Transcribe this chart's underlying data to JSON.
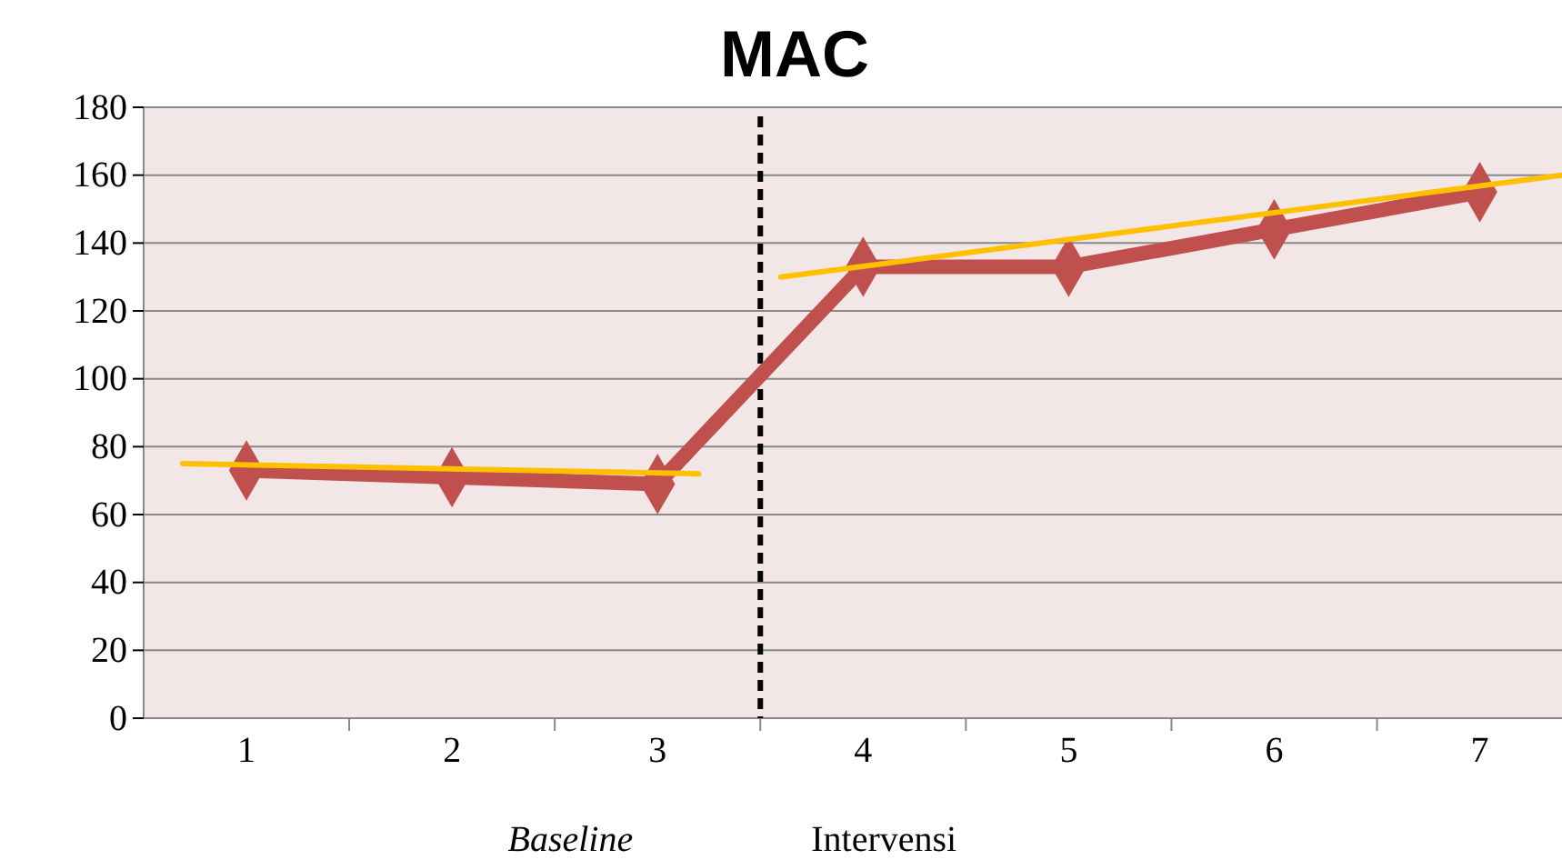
{
  "chart_data": {
    "type": "line",
    "title": "MAC",
    "x": [
      1,
      2,
      3,
      4,
      5,
      6,
      7
    ],
    "series": [
      {
        "color": "#c0504d",
        "values": [
          73,
          71,
          69,
          133,
          133,
          144,
          155
        ],
        "marker": "diamond"
      },
      {
        "type": "line",
        "color": "#ffc000",
        "x": [
          0.69,
          3.2
        ],
        "values": [
          75,
          72
        ],
        "marker": "none"
      },
      {
        "type": "line",
        "color": "#ffc000",
        "x": [
          3.6,
          7.4
        ],
        "values": [
          130,
          160
        ],
        "marker": "none"
      }
    ],
    "xlim": [
      0.5,
      7.4
    ],
    "ylim": [
      0,
      180
    ],
    "xticks": [
      1,
      2,
      3,
      4,
      5,
      6,
      7,
      {
        "value": 1.5,
        "label": null
      },
      {
        "value": 2.5,
        "label": null
      },
      {
        "value": 3.5,
        "label": null
      },
      {
        "value": 4.5,
        "label": null
      },
      {
        "value": 5.5,
        "label": null
      },
      {
        "value": 6.5,
        "label": null
      }
    ],
    "yticks": [
      0,
      20,
      40,
      60,
      80,
      100,
      120,
      140,
      160,
      180
    ],
    "grid": "y",
    "ref_lines": [
      {
        "axis": "x",
        "value": 3.5,
        "color": "#000000",
        "line_style": "dashed"
      }
    ],
    "annotations": [
      "Baseline",
      "Intervensi"
    ]
  }
}
